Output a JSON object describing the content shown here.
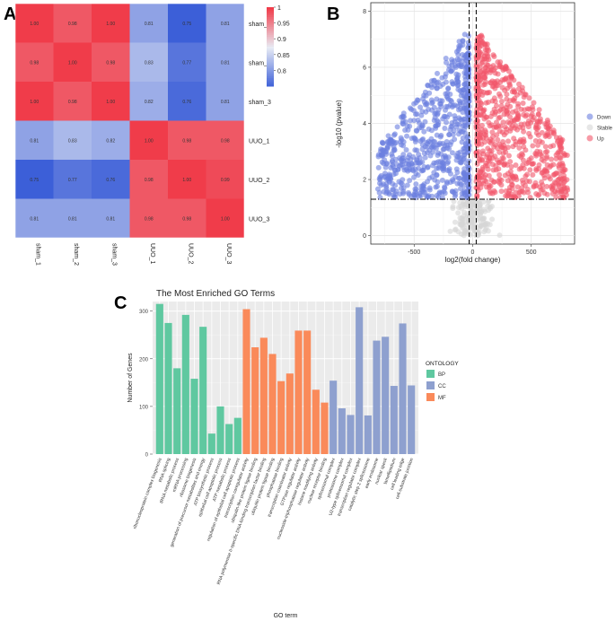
{
  "panels": {
    "a": "A",
    "b": "B",
    "c": "C"
  },
  "colors": {
    "heat_low": "#3c5fd8",
    "heat_mid": "#e8ebf4",
    "heat_high": "#f03c4a",
    "down": "#6b7fe0",
    "stable": "#d6d6d6",
    "up": "#f2576a",
    "bp": "#5fc8a0",
    "cc": "#8ea0cf",
    "mf": "#fa8a5a"
  },
  "chart_data": [
    {
      "type": "heatmap",
      "rows": [
        "sham_1",
        "sham_2",
        "sham_3",
        "UUO_1",
        "UUO_2",
        "UUO_3"
      ],
      "columns": [
        "sham_1",
        "sham_2",
        "sham_3",
        "UUO_1",
        "UUO_2",
        "UUO_3"
      ],
      "cells": [
        [
          "1.00",
          "0.98",
          "1.00",
          "0.81",
          "0.75",
          "0.81"
        ],
        [
          "0.98",
          "1.00",
          "0.98",
          "0.83",
          "0.77",
          "0.81"
        ],
        [
          "1.00",
          "0.98",
          "1.00",
          "0.82",
          "0.76",
          "0.81"
        ],
        [
          "0.81",
          "0.83",
          "0.82",
          "1.00",
          "0.98",
          "0.98"
        ],
        [
          "0.75",
          "0.77",
          "0.76",
          "0.98",
          "1.00",
          "0.99"
        ],
        [
          "0.81",
          "0.81",
          "0.81",
          "0.98",
          "0.98",
          "1.00"
        ]
      ],
      "legend_ticks": [
        "1",
        "0.95",
        "0.9",
        "0.85",
        "0.8"
      ],
      "range": [
        0.75,
        1.0
      ]
    },
    {
      "type": "scatter",
      "xlabel": "log2(fold change)",
      "ylabel": "-log10 (pvalue)",
      "xlim": [
        -870,
        870
      ],
      "ylim": [
        -0.3,
        8.3
      ],
      "x_ticks": [
        "-500",
        "0",
        "500"
      ],
      "y_ticks": [
        "0",
        "2",
        "4",
        "6",
        "8"
      ],
      "threshold_lines": {
        "x": [
          -30,
          30
        ],
        "y": 1.3
      },
      "legend": [
        "Down",
        "Stable",
        "Up"
      ],
      "series": [
        {
          "name": "Down",
          "x_range": [
            -800,
            -30
          ],
          "y_range": [
            1.3,
            7.2
          ],
          "approx_points": 700
        },
        {
          "name": "Stable",
          "x_range": [
            -250,
            250
          ],
          "y_range": [
            0,
            1.3
          ],
          "approx_points": 160
        },
        {
          "name": "Up",
          "x_range": [
            30,
            820
          ],
          "y_range": [
            1.3,
            7.2
          ],
          "approx_points": 700
        }
      ]
    },
    {
      "type": "bar",
      "title": "The Most Enriched GO Terms",
      "xlabel": "GO term",
      "ylabel": "Number of Genes",
      "ylim": [
        0,
        320
      ],
      "y_ticks": [
        "0",
        "100",
        "200",
        "300"
      ],
      "legend_title": "ONTOLOGY",
      "categories": [
        "ribonucleoprotein complex biogenesis",
        "RNA splicing",
        "tRNA metabolic process",
        "mRNA processing",
        "ribosome biogenesis",
        "generation of precursor metabolites and energy",
        "ATP biosynthetic process",
        "epithelial cell apoptotic process",
        "ATP metabolic process",
        "regulation of epithelial cell apoptotic process",
        "transcription coregulator activity",
        "ubiquitin-like protein ligase binding",
        "RNA polymerase II-specific DNA-binding transcription factor binding",
        "ubiquitin protein ligase binding",
        "phosphatase binding",
        "transcription coactivator activity",
        "GTPase regulator activity",
        "nucleoside-triphosphatase regulator activity",
        "histone modifying activity",
        "nuclear receptor binding",
        "spliceosomal complex",
        "proteasome complex",
        "U2-type spliceosomal complex",
        "transcription regulator complex",
        "catalytic step 2 spliceosome",
        "early endosome",
        "nuclear speck",
        "lamellipodium",
        "cell leading edge",
        "cell-substrate junction"
      ],
      "values": [
        315,
        275,
        180,
        292,
        158,
        267,
        43,
        100,
        63,
        76,
        304,
        224,
        244,
        210,
        153,
        169,
        259,
        259,
        135,
        108,
        154,
        96,
        82,
        308,
        81,
        238,
        246,
        143,
        274,
        144
      ],
      "groups": [
        "BP",
        "BP",
        "BP",
        "BP",
        "BP",
        "BP",
        "BP",
        "BP",
        "BP",
        "BP",
        "MF",
        "MF",
        "MF",
        "MF",
        "MF",
        "MF",
        "MF",
        "MF",
        "MF",
        "MF",
        "CC",
        "CC",
        "CC",
        "CC",
        "CC",
        "CC",
        "CC",
        "CC",
        "CC",
        "CC"
      ],
      "legend": [
        "BP",
        "CC",
        "MF"
      ]
    }
  ]
}
